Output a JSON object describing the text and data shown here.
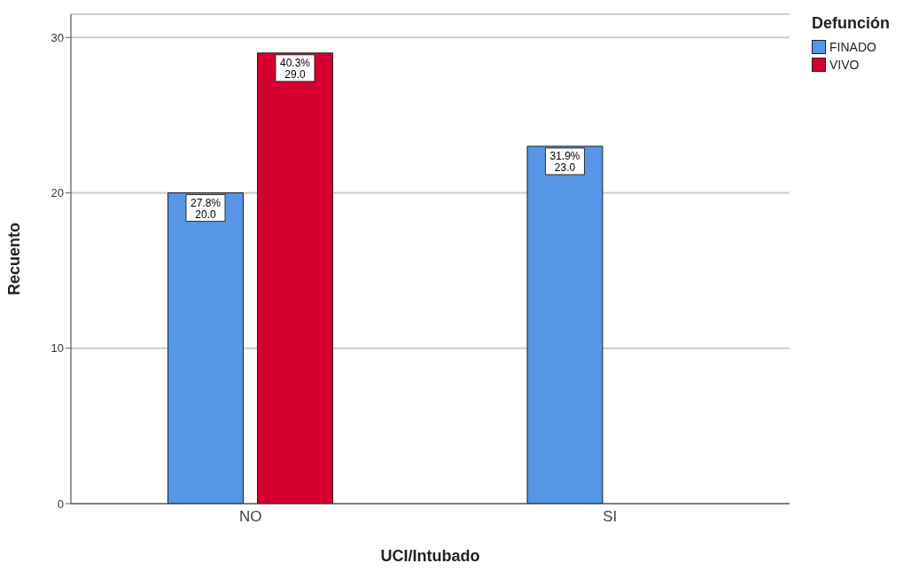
{
  "chart_data": {
    "type": "bar",
    "xlabel": "UCI/Intubado",
    "ylabel": "Recuento",
    "legend_title": "Defunción",
    "categories": [
      "NO",
      "SI"
    ],
    "series": [
      {
        "name": "FINADO",
        "color": "#5596e6",
        "values": [
          20,
          23
        ],
        "value_labels": [
          "27.8%\n20.0",
          "31.9%\n23.0"
        ]
      },
      {
        "name": "VIVO",
        "color": "#d6002f",
        "values": [
          29,
          null
        ],
        "value_labels": [
          "40.3%\n29.0",
          null
        ]
      }
    ],
    "ylim": [
      0,
      31.5
    ],
    "yticks": [
      0,
      10,
      20,
      30
    ],
    "grid": "y",
    "legend": "top right"
  }
}
